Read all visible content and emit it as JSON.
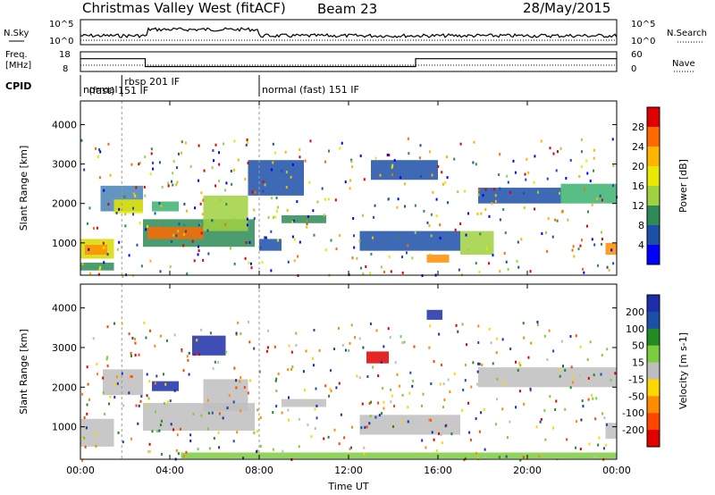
{
  "header": {
    "title": "Christmas Valley West (fitACF)",
    "beam": "Beam 23",
    "date": "28/May/2015"
  },
  "top_panels": {
    "nsky_label": "N.Sky",
    "nsky_tick_hi": "10^5",
    "nsky_tick_lo": "10^0",
    "nsky_right_hi": "10^5",
    "nsky_right_lo": "10^0",
    "nsearch_label": "N.Search",
    "freq_label_1": "Freq.",
    "freq_label_2": "[MHz]",
    "freq_tick_hi": "18",
    "freq_tick_lo": "8",
    "nave_tick_hi": "60",
    "nave_tick_lo": "0",
    "nave_label": "Nave",
    "cpid_label": "CPID",
    "cpid_segments": [
      {
        "start": 0.0,
        "end": 1.85,
        "label": "normal"
      },
      {
        "start": 1.85,
        "end": 8.0,
        "label": "rbsp 201 IF",
        "label2": "(fast) 151 IF"
      },
      {
        "start": 8.0,
        "end": 24.0,
        "label": "normal (fast) 151 IF"
      }
    ],
    "freq_series": [
      {
        "t": 0.0,
        "freq": 14.5
      },
      {
        "t": 2.9,
        "freq": 14.5
      },
      {
        "t": 2.9,
        "freq": 10.5
      },
      {
        "t": 15.0,
        "freq": 10.5
      },
      {
        "t": 15.0,
        "freq": 14.5
      },
      {
        "t": 24.0,
        "freq": 14.5
      }
    ]
  },
  "chart_data": [
    {
      "type": "heatmap",
      "name": "power",
      "ylabel": "Slant Range [km]",
      "ylim": [
        180,
        4600
      ],
      "yticks": [
        1000,
        2000,
        3000,
        4000
      ],
      "xlim": [
        0,
        24
      ],
      "colorbar_label": "Power [dB]",
      "colorbar_ticks": [
        "28",
        "24",
        "20",
        "16",
        "12",
        "8",
        "4"
      ],
      "colorbar_colors": [
        "#e00000",
        "#ff6a00",
        "#ffb400",
        "#e8e800",
        "#9fd140",
        "#2e8b57",
        "#1c4fa8",
        "#0000ff"
      ],
      "regions": [
        {
          "t0": 0.0,
          "t1": 1.5,
          "r0": 600,
          "r1": 1100,
          "color": "#d8d800"
        },
        {
          "t0": 0.2,
          "t1": 1.2,
          "r0": 700,
          "r1": 950,
          "color": "#ff8c00"
        },
        {
          "t0": 0.0,
          "t1": 1.5,
          "r0": 300,
          "r1": 500,
          "color": "#2e8b57"
        },
        {
          "t0": 0.9,
          "t1": 2.8,
          "r0": 1800,
          "r1": 2450,
          "color": "#4682b4"
        },
        {
          "t0": 1.5,
          "t1": 2.8,
          "r0": 1750,
          "r1": 2100,
          "color": "#e8e800"
        },
        {
          "t0": 3.2,
          "t1": 4.4,
          "r0": 1800,
          "r1": 2050,
          "color": "#3cb371"
        },
        {
          "t0": 2.8,
          "t1": 7.8,
          "r0": 900,
          "r1": 1600,
          "color": "#2e8b57"
        },
        {
          "t0": 3.0,
          "t1": 5.5,
          "r0": 1100,
          "r1": 1400,
          "color": "#ff6a00"
        },
        {
          "t0": 5.5,
          "t1": 7.5,
          "r0": 1300,
          "r1": 2200,
          "color": "#9fd140"
        },
        {
          "t0": 7.5,
          "t1": 10.0,
          "r0": 2200,
          "r1": 3100,
          "color": "#1c4fa8"
        },
        {
          "t0": 9.0,
          "t1": 11.0,
          "r0": 1500,
          "r1": 1700,
          "color": "#2e8b57"
        },
        {
          "t0": 8.0,
          "t1": 9.0,
          "r0": 800,
          "r1": 1100,
          "color": "#1c4fa8"
        },
        {
          "t0": 12.5,
          "t1": 17.0,
          "r0": 800,
          "r1": 1300,
          "color": "#1c4fa8"
        },
        {
          "t0": 15.5,
          "t1": 16.5,
          "r0": 500,
          "r1": 700,
          "color": "#ff8c00"
        },
        {
          "t0": 17.0,
          "t1": 18.5,
          "r0": 700,
          "r1": 1300,
          "color": "#9fd140"
        },
        {
          "t0": 17.8,
          "t1": 21.5,
          "r0": 2000,
          "r1": 2400,
          "color": "#1c4fa8"
        },
        {
          "t0": 21.5,
          "t1": 24.0,
          "r0": 2000,
          "r1": 2500,
          "color": "#3cb371"
        },
        {
          "t0": 23.5,
          "t1": 24.0,
          "r0": 700,
          "r1": 1000,
          "color": "#ff8c00"
        },
        {
          "t0": 13.0,
          "t1": 16.0,
          "r0": 2600,
          "r1": 3100,
          "color": "#1c4fa8"
        }
      ]
    },
    {
      "type": "heatmap",
      "name": "velocity",
      "ylabel": "Slant Range [km]",
      "xlabel": "Time UT",
      "ylim": [
        180,
        4600
      ],
      "yticks": [
        1000,
        2000,
        3000,
        4000
      ],
      "xlim": [
        0,
        24
      ],
      "xticks": [
        "00:00",
        "04:00",
        "08:00",
        "12:00",
        "16:00",
        "20:00",
        "00:00"
      ],
      "colorbar_label": "Velocity [m s-1]",
      "colorbar_ticks": [
        "200",
        "100",
        "50",
        "15",
        "-15",
        "-50",
        "-100",
        "-200"
      ],
      "colorbar_colors": [
        "#1c2fa8",
        "#1c4fa8",
        "#228b22",
        "#7ccd3c",
        "#bebebe",
        "#ffd700",
        "#ff8c00",
        "#ff4500",
        "#e00000"
      ],
      "regions": [
        {
          "t0": 0.0,
          "t1": 1.5,
          "r0": 500,
          "r1": 1200,
          "color": "#bebebe"
        },
        {
          "t0": 1.0,
          "t1": 2.8,
          "r0": 1800,
          "r1": 2450,
          "color": "#bebebe"
        },
        {
          "t0": 2.8,
          "t1": 7.8,
          "r0": 900,
          "r1": 1600,
          "color": "#bebebe"
        },
        {
          "t0": 3.2,
          "t1": 4.4,
          "r0": 1900,
          "r1": 2150,
          "color": "#1c2fa8"
        },
        {
          "t0": 5.5,
          "t1": 7.5,
          "r0": 1400,
          "r1": 2200,
          "color": "#bebebe"
        },
        {
          "t0": 9.0,
          "t1": 11.0,
          "r0": 1500,
          "r1": 1700,
          "color": "#bebebe"
        },
        {
          "t0": 12.5,
          "t1": 17.0,
          "r0": 800,
          "r1": 1300,
          "color": "#bebebe"
        },
        {
          "t0": 12.8,
          "t1": 13.8,
          "r0": 2600,
          "r1": 2900,
          "color": "#e00000"
        },
        {
          "t0": 17.8,
          "t1": 24.0,
          "r0": 2000,
          "r1": 2500,
          "color": "#bebebe"
        },
        {
          "t0": 23.5,
          "t1": 24.0,
          "r0": 700,
          "r1": 1100,
          "color": "#bebebe"
        },
        {
          "t0": 4.5,
          "t1": 24.0,
          "r0": 200,
          "r1": 350,
          "color": "#7ccd3c"
        },
        {
          "t0": 5.0,
          "t1": 6.5,
          "r0": 2800,
          "r1": 3300,
          "color": "#1c2fa8"
        },
        {
          "t0": 15.5,
          "t1": 16.2,
          "r0": 3700,
          "r1": 3950,
          "color": "#1c2fa8"
        }
      ]
    }
  ]
}
